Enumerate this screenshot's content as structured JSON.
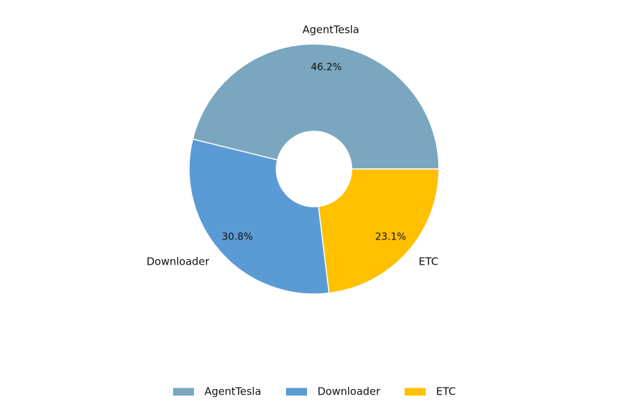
{
  "chart_data": {
    "type": "pie",
    "categories": [
      "AgentTesla",
      "Downloader",
      "ETC"
    ],
    "values": [
      46.2,
      30.8,
      23.1
    ],
    "labels": [
      "46.2%",
      "30.8%",
      "23.1%"
    ],
    "colors": [
      "#7AA6BF",
      "#5B9BD5",
      "#FFC000"
    ],
    "legend": {
      "position": "bottom",
      "items": [
        "AgentTesla",
        "Downloader",
        "ETC"
      ]
    }
  }
}
